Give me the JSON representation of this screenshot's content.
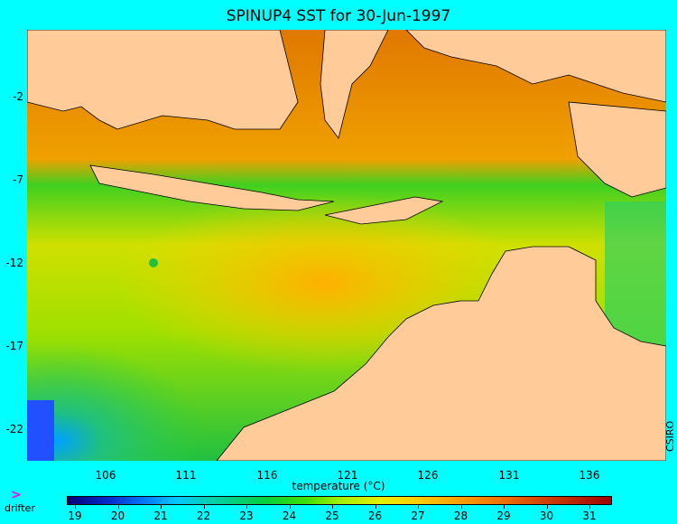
{
  "title": "SPINUP4 SST for 30-Jun-1997",
  "y_ticks": [
    "-2",
    "-7",
    "-12",
    "-17",
    "-22"
  ],
  "x_ticks": [
    "106",
    "111",
    "116",
    "121",
    "126",
    "131",
    "136"
  ],
  "x_label": "temperature (°C)",
  "credit": "CSIRO",
  "legend": {
    "drifter_symbol": ">",
    "drifter_label": "drifter"
  },
  "colorbar_ticks": [
    "19",
    "20",
    "21",
    "22",
    "23",
    "24",
    "25",
    "26",
    "27",
    "28",
    "29",
    "30",
    "31"
  ],
  "colors": {
    "background": "#00ffff",
    "land": "#ffcc99",
    "warm": "#f08000",
    "cool": "#20c040"
  }
}
